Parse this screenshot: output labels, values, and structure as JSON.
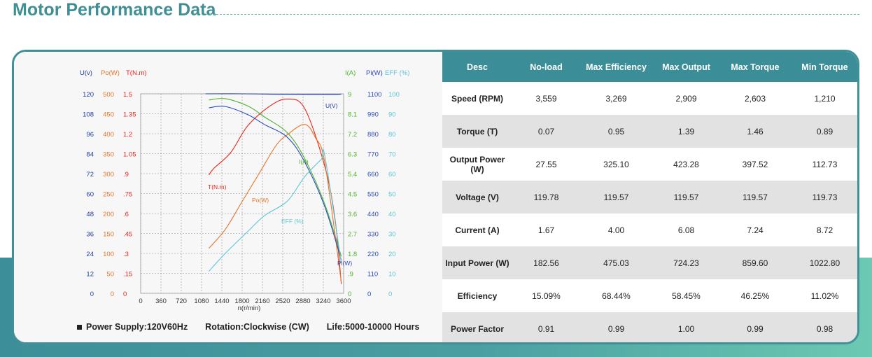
{
  "page": {
    "title": "Motor Performance Data"
  },
  "footer": {
    "supply": "Power Supply:120V60Hz",
    "rotation": "Rotation:Clockwise (CW)",
    "life": "Life:5000-10000 Hours"
  },
  "colors": {
    "accent": "#3b8e98",
    "u": "#1f3c9c",
    "po": "#e8762a",
    "t": "#e8251c",
    "i": "#4fb12f",
    "pi": "#2b4bbf",
    "eff": "#5cc6d6"
  },
  "chart_data": {
    "type": "line",
    "xlabel": "n(r/min)",
    "x_ticks": [
      "0",
      "360",
      "720",
      "1080",
      "1440",
      "1800",
      "2160",
      "2520",
      "2880",
      "3240",
      "3600"
    ],
    "xlim": [
      0,
      3600
    ],
    "axes_headers": {
      "u": "U(v)",
      "po": "Po(W)",
      "t": "T(N.m)",
      "i": "I(A)",
      "pi": "Pi(W)",
      "eff": "EFF (%)"
    },
    "axes_ticks": {
      "u": [
        "120",
        "108",
        "96",
        "84",
        "72",
        "60",
        "48",
        "36",
        "24",
        "12",
        "0"
      ],
      "po": [
        "500",
        "450",
        "400",
        "350",
        "300",
        "250",
        "200",
        "150",
        "100",
        "50",
        "0"
      ],
      "t": [
        "1.5",
        "1.35",
        "1.2",
        "1.05",
        ".9",
        ".75",
        ".6",
        ".45",
        ".3",
        ".15",
        "0"
      ],
      "i": [
        "9",
        "8.1",
        "7.2",
        "6.3",
        "5.4",
        "4.5",
        "3.6",
        "2.7",
        "1.8",
        ".9",
        "0"
      ],
      "pi": [
        "1100",
        "990",
        "880",
        "770",
        "660",
        "550",
        "440",
        "330",
        "220",
        "110",
        "0"
      ],
      "eff": [
        "100",
        "90",
        "80",
        "70",
        "60",
        "50",
        "40",
        "30",
        "20",
        "10",
        "0"
      ]
    },
    "series": [
      {
        "name": "U(V)",
        "axis": "u",
        "x": [
          1150,
          1800,
          2500,
          3000,
          3450,
          3559
        ],
        "y": [
          120,
          120,
          119.7,
          119.6,
          119.6,
          119.8
        ]
      },
      {
        "name": "T(N.m)",
        "axis": "t",
        "x": [
          1210,
          1300,
          1600,
          1900,
          2300,
          2603,
          2909,
          3269,
          3450,
          3559
        ],
        "y": [
          0.89,
          0.94,
          1.06,
          1.26,
          1.41,
          1.46,
          1.39,
          0.95,
          0.55,
          0.07
        ]
      },
      {
        "name": "I(A)",
        "axis": "i",
        "x": [
          1210,
          1500,
          1900,
          2200,
          2603,
          2909,
          3269,
          3559
        ],
        "y": [
          8.72,
          8.78,
          8.45,
          7.95,
          7.24,
          6.08,
          4.0,
          1.67
        ]
      },
      {
        "name": "Po(W)",
        "axis": "po",
        "x": [
          1210,
          1500,
          1800,
          2100,
          2400,
          2603,
          2909,
          3100,
          3269,
          3559
        ],
        "y": [
          112.73,
          160,
          230,
          300,
          370,
          397.52,
          423.28,
          390,
          325.1,
          27.55
        ]
      },
      {
        "name": "Pi(W)",
        "axis": "pi",
        "x": [
          1210,
          1500,
          1900,
          2200,
          2603,
          2909,
          3269,
          3559
        ],
        "y": [
          1022.8,
          1030,
          985,
          930,
          859.6,
          724.23,
          475.03,
          182.56
        ]
      },
      {
        "name": "EFF (%)",
        "axis": "eff",
        "x": [
          1210,
          1500,
          1900,
          2200,
          2603,
          2909,
          3200,
          3269,
          3559
        ],
        "y": [
          11.02,
          20,
          31,
          39,
          46.25,
          58.45,
          67,
          68.44,
          15.09
        ]
      }
    ]
  },
  "table": {
    "headers": [
      "Desc",
      "No-load",
      "Max Efficiency",
      "Max Output",
      "Max Torque",
      "Min Torque"
    ],
    "rows": [
      {
        "desc": "Speed (RPM)",
        "values": [
          "3,559",
          "3,269",
          "2,909",
          "2,603",
          "1,210"
        ]
      },
      {
        "desc": "Torque (T)",
        "values": [
          "0.07",
          "0.95",
          "1.39",
          "1.46",
          "0.89"
        ]
      },
      {
        "desc": "Output Power (W)",
        "values": [
          "27.55",
          "325.10",
          "423.28",
          "397.52",
          "112.73"
        ]
      },
      {
        "desc": "Voltage (V)",
        "values": [
          "119.78",
          "119.57",
          "119.57",
          "119.57",
          "119.73"
        ]
      },
      {
        "desc": "Current (A)",
        "values": [
          "1.67",
          "4.00",
          "6.08",
          "7.24",
          "8.72"
        ]
      },
      {
        "desc": "Input Power (W)",
        "values": [
          "182.56",
          "475.03",
          "724.23",
          "859.60",
          "1022.80"
        ]
      },
      {
        "desc": "Efficiency",
        "values": [
          "15.09%",
          "68.44%",
          "58.45%",
          "46.25%",
          "11.02%"
        ]
      },
      {
        "desc": "Power Factor",
        "values": [
          "0.91",
          "0.99",
          "1.00",
          "0.99",
          "0.98"
        ]
      }
    ]
  }
}
